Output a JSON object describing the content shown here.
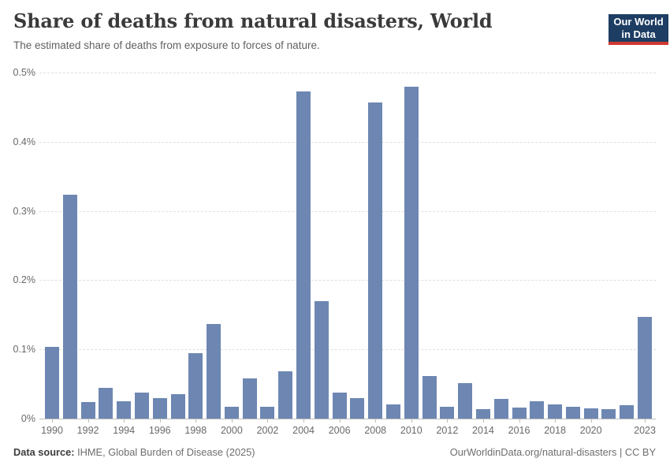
{
  "header": {
    "title": "Share of deaths from natural disasters, World",
    "subtitle": "The estimated share of deaths from exposure to forces of nature.",
    "logo_line1": "Our World",
    "logo_line2": "in Data"
  },
  "colors": {
    "bar": "#6d87b2",
    "logo_navy": "#1d3d63",
    "logo_red": "#d0382f"
  },
  "chart_data": {
    "type": "bar",
    "title": "Share of deaths from natural disasters, World",
    "xlabel": "",
    "ylabel": "",
    "ylim": [
      0,
      0.5
    ],
    "grid": "dashed-horizontal",
    "y_tick_labels": [
      "0%",
      "0.1%",
      "0.2%",
      "0.3%",
      "0.4%",
      "0.5%"
    ],
    "y_tick_values": [
      0,
      0.1,
      0.2,
      0.3,
      0.4,
      0.5
    ],
    "x_tick_labels": [
      "1990",
      "1992",
      "1994",
      "1996",
      "1998",
      "2000",
      "2002",
      "2004",
      "2006",
      "2008",
      "2010",
      "2012",
      "2014",
      "2016",
      "2018",
      "2020",
      "2023"
    ],
    "categories": [
      1990,
      1991,
      1992,
      1993,
      1994,
      1995,
      1996,
      1997,
      1998,
      1999,
      2000,
      2001,
      2002,
      2003,
      2004,
      2005,
      2006,
      2007,
      2008,
      2009,
      2010,
      2011,
      2012,
      2013,
      2014,
      2015,
      2016,
      2017,
      2018,
      2019,
      2020,
      2021,
      2022,
      2023
    ],
    "values": [
      0.104,
      0.323,
      0.024,
      0.044,
      0.025,
      0.038,
      0.03,
      0.035,
      0.095,
      0.137,
      0.017,
      0.058,
      0.017,
      0.068,
      0.473,
      0.17,
      0.038,
      0.03,
      0.457,
      0.021,
      0.479,
      0.061,
      0.017,
      0.051,
      0.014,
      0.028,
      0.016,
      0.025,
      0.021,
      0.017,
      0.015,
      0.014,
      0.019,
      0.147
    ],
    "value_unit": "%"
  },
  "footer": {
    "source_label": "Data source:",
    "source_value": "IHME, Global Burden of Disease (2025)",
    "link": "OurWorldinData.org/natural-disasters | CC BY"
  }
}
